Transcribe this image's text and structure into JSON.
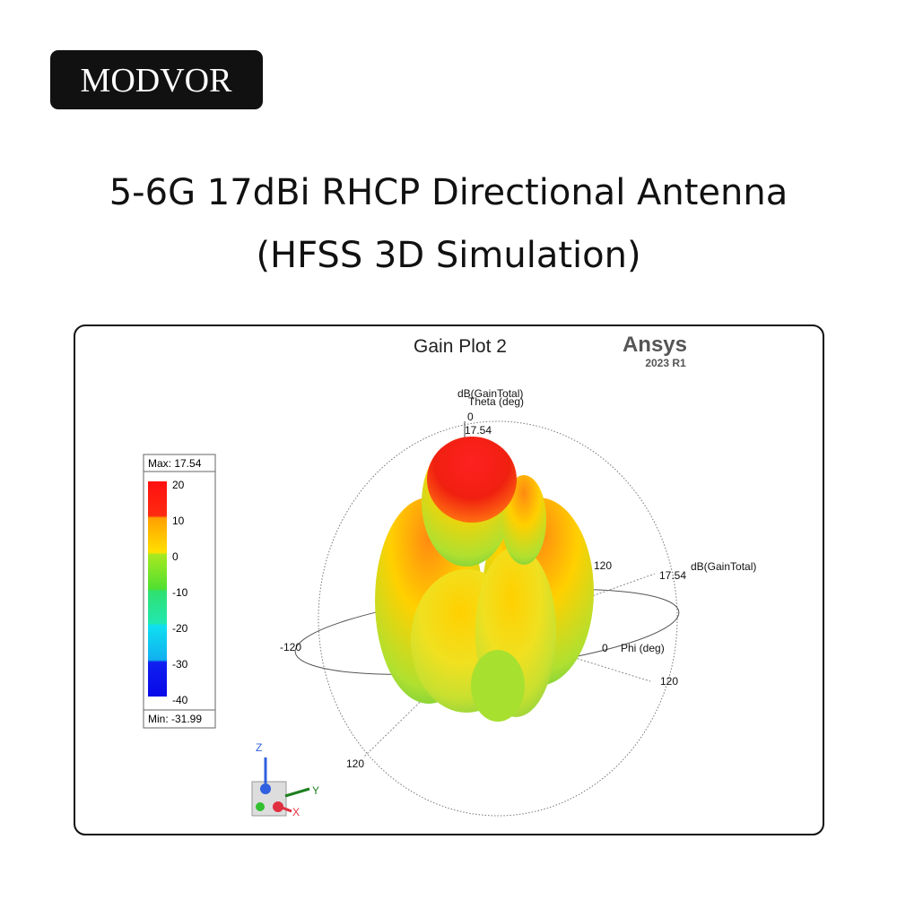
{
  "brand": "MODVOR",
  "title": [
    "5-6G 17dBi RHCP Directional Antenna",
    "(HFSS 3D Simulation)"
  ],
  "plot": {
    "title": "Gain Plot 2",
    "vendor": "Ansys",
    "version": "2023 R1",
    "legend": {
      "max": "Max: 17.54",
      "ticks": [
        20,
        10,
        0,
        -10,
        -20,
        -30,
        -40
      ],
      "min": "Min: -31.99"
    },
    "theta": {
      "quantity": "dB(GainTotal)",
      "axis": "Theta (deg)",
      "zero": "0",
      "max": "17.54"
    },
    "phi": {
      "angle_a": "120",
      "max": "17.54",
      "quantity": "dB(GainTotal)",
      "zero": "0",
      "axis": "Phi (deg)",
      "angle_b": "120",
      "angle_c": "-120",
      "angle_d": "120"
    },
    "triad": {
      "z": "Z",
      "y": "Y",
      "x": "X"
    }
  }
}
